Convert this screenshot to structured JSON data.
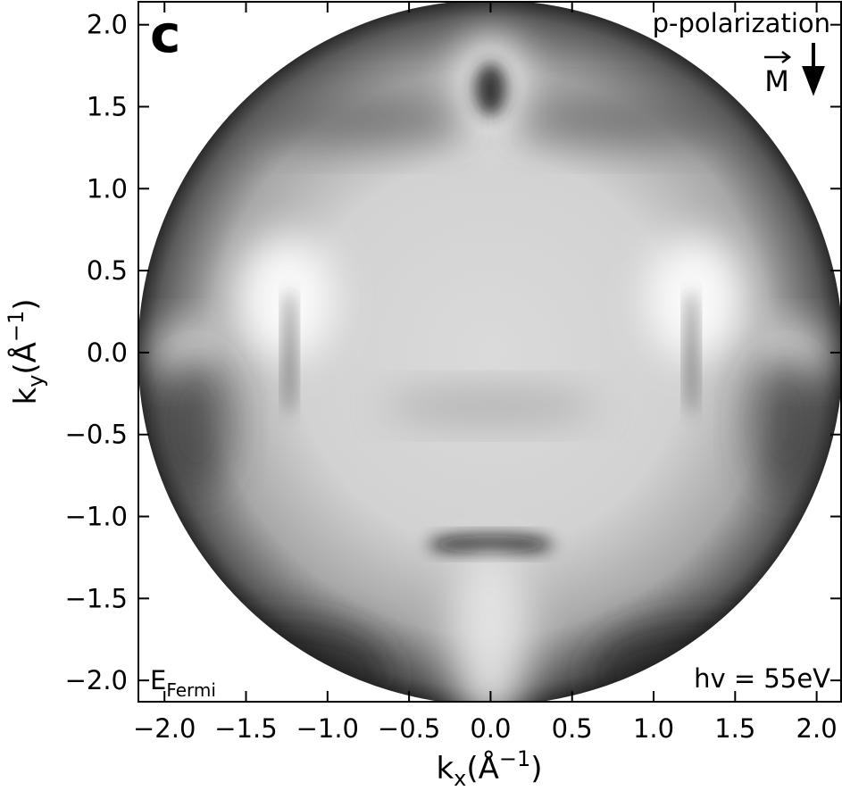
{
  "chart_data": {
    "type": "image",
    "xlabel": {
      "symbol": "k",
      "subscript": "x",
      "unit": "(Å",
      "exponent": "−1",
      "close": ")"
    },
    "ylabel": {
      "symbol": "k",
      "subscript": "y",
      "unit": "(Å",
      "exponent": "−1",
      "close": ")"
    },
    "xlim": [
      -2.16,
      2.15
    ],
    "ylim": [
      -2.13,
      2.14
    ],
    "xticks": [
      {
        "value": -2.0,
        "label": "−2.0"
      },
      {
        "value": -1.5,
        "label": "−1.5"
      },
      {
        "value": -1.0,
        "label": "−1.0"
      },
      {
        "value": -0.5,
        "label": "−0.5"
      },
      {
        "value": 0.0,
        "label": "0.0"
      },
      0.5,
      {
        "value": 1.0,
        "label": "1.0"
      },
      1.5,
      {
        "value": 2.0,
        "label": "2.0"
      }
    ],
    "yticks": [
      {
        "value": -2.0,
        "label": "−2.0"
      },
      {
        "value": -1.5,
        "label": "−1.5"
      },
      {
        "value": -1.0,
        "label": "−1.0"
      },
      {
        "value": -0.5,
        "label": "−0.5"
      },
      {
        "value": 0.0,
        "label": "0.0"
      },
      0.5,
      {
        "value": 1.0,
        "label": "1.0"
      },
      1.5,
      {
        "value": 2.0,
        "label": "2.0"
      }
    ],
    "annotations": {
      "panel": "c",
      "polarization": "p-polarization",
      "magnetization": "M",
      "energy": "E",
      "energy_subscript": "Fermi",
      "photon": "hv = 55eV"
    }
  }
}
